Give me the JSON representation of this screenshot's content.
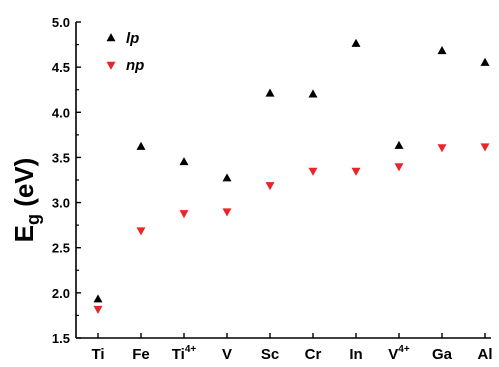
{
  "chart_data": {
    "type": "scatter",
    "title": "",
    "xlabel": "",
    "ylabel_main": "E",
    "ylabel_sub": "g",
    "ylabel_unit": " (eV)",
    "ylim": [
      1.5,
      5.0
    ],
    "yticks": [
      "1.5",
      "2.0",
      "2.5",
      "3.0",
      "3.5",
      "4.0",
      "4.5",
      "5.0"
    ],
    "ytick_values": [
      1.5,
      2.0,
      2.5,
      3.0,
      3.5,
      4.0,
      4.5,
      5.0
    ],
    "grid": false,
    "legend_position": "top-left",
    "categories": [
      {
        "base": "Ti",
        "sup": ""
      },
      {
        "base": "Fe",
        "sup": ""
      },
      {
        "base": "Ti",
        "sup": "4+"
      },
      {
        "base": "V",
        "sup": ""
      },
      {
        "base": "Sc",
        "sup": ""
      },
      {
        "base": "Cr",
        "sup": ""
      },
      {
        "base": "In",
        "sup": ""
      },
      {
        "base": "V",
        "sup": "4+"
      },
      {
        "base": "Ga",
        "sup": ""
      },
      {
        "base": "Al",
        "sup": ""
      }
    ],
    "series": [
      {
        "name": "lp",
        "marker": "triangle-up",
        "color": "#000000",
        "values": [
          1.93,
          3.62,
          3.45,
          3.27,
          4.21,
          4.2,
          4.76,
          3.63,
          4.68,
          4.55
        ]
      },
      {
        "name": "np",
        "marker": "triangle-down",
        "color": "#e8262a",
        "values": [
          1.82,
          2.69,
          2.88,
          2.9,
          3.19,
          3.35,
          3.35,
          3.4,
          3.61,
          3.62
        ]
      }
    ]
  }
}
